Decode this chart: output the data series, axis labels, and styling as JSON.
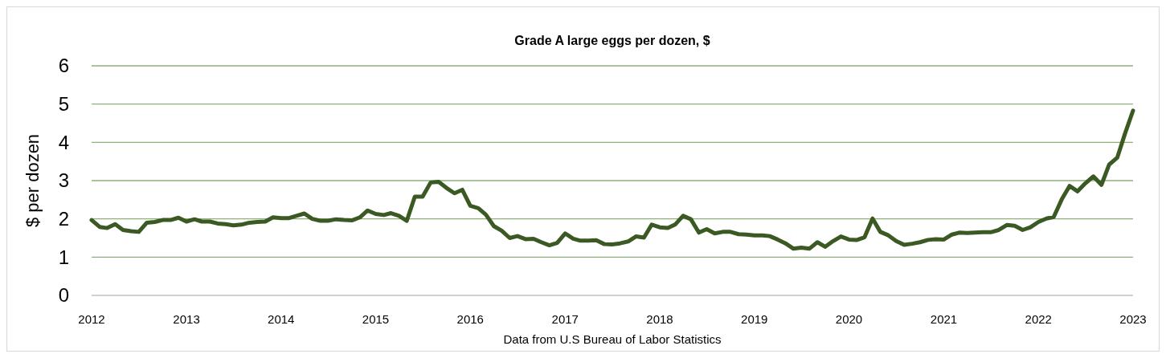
{
  "chart_data": {
    "type": "line",
    "title": "Grade A large eggs per dozen, $",
    "ylabel": "$ per dozen",
    "annotations": [
      "Data from U.S Bureau of Labor Statistics"
    ],
    "x": [
      "2012-01",
      "2012-02",
      "2012-03",
      "2012-04",
      "2012-05",
      "2012-06",
      "2012-07",
      "2012-08",
      "2012-09",
      "2012-10",
      "2012-11",
      "2012-12",
      "2013-01",
      "2013-02",
      "2013-03",
      "2013-04",
      "2013-05",
      "2013-06",
      "2013-07",
      "2013-08",
      "2013-09",
      "2013-10",
      "2013-11",
      "2013-12",
      "2014-01",
      "2014-02",
      "2014-03",
      "2014-04",
      "2014-05",
      "2014-06",
      "2014-07",
      "2014-08",
      "2014-09",
      "2014-10",
      "2014-11",
      "2014-12",
      "2015-01",
      "2015-02",
      "2015-03",
      "2015-04",
      "2015-05",
      "2015-06",
      "2015-07",
      "2015-08",
      "2015-09",
      "2015-10",
      "2015-11",
      "2015-12",
      "2016-01",
      "2016-02",
      "2016-03",
      "2016-04",
      "2016-05",
      "2016-06",
      "2016-07",
      "2016-08",
      "2016-09",
      "2016-10",
      "2016-11",
      "2016-12",
      "2017-01",
      "2017-02",
      "2017-03",
      "2017-04",
      "2017-05",
      "2017-06",
      "2017-07",
      "2017-08",
      "2017-09",
      "2017-10",
      "2017-11",
      "2017-12",
      "2018-01",
      "2018-02",
      "2018-03",
      "2018-04",
      "2018-05",
      "2018-06",
      "2018-07",
      "2018-08",
      "2018-09",
      "2018-10",
      "2018-11",
      "2018-12",
      "2019-01",
      "2019-02",
      "2019-03",
      "2019-04",
      "2019-05",
      "2019-06",
      "2019-07",
      "2019-08",
      "2019-09",
      "2019-10",
      "2019-11",
      "2019-12",
      "2020-01",
      "2020-02",
      "2020-03",
      "2020-04",
      "2020-05",
      "2020-06",
      "2020-07",
      "2020-08",
      "2020-09",
      "2020-10",
      "2020-11",
      "2020-12",
      "2021-01",
      "2021-02",
      "2021-03",
      "2021-04",
      "2021-05",
      "2021-06",
      "2021-07",
      "2021-08",
      "2021-09",
      "2021-10",
      "2021-11",
      "2021-12",
      "2022-01",
      "2022-02",
      "2022-03",
      "2022-04",
      "2022-05",
      "2022-06",
      "2022-07",
      "2022-08",
      "2022-09",
      "2022-10",
      "2022-11",
      "2022-12",
      "2023-01"
    ],
    "series": [
      {
        "color": "#3b5a23",
        "values": [
          1.97,
          1.79,
          1.76,
          1.86,
          1.71,
          1.68,
          1.66,
          1.9,
          1.92,
          1.97,
          1.97,
          2.03,
          1.93,
          1.99,
          1.93,
          1.93,
          1.88,
          1.86,
          1.83,
          1.85,
          1.9,
          1.92,
          1.93,
          2.04,
          2.02,
          2.02,
          2.08,
          2.14,
          2.0,
          1.95,
          1.95,
          1.99,
          1.97,
          1.96,
          2.04,
          2.22,
          2.13,
          2.1,
          2.15,
          2.08,
          1.95,
          2.58,
          2.58,
          2.95,
          2.97,
          2.81,
          2.67,
          2.76,
          2.34,
          2.28,
          2.11,
          1.81,
          1.69,
          1.5,
          1.55,
          1.47,
          1.48,
          1.39,
          1.31,
          1.37,
          1.62,
          1.48,
          1.43,
          1.43,
          1.44,
          1.34,
          1.33,
          1.36,
          1.41,
          1.54,
          1.51,
          1.85,
          1.78,
          1.76,
          1.85,
          2.08,
          1.99,
          1.64,
          1.73,
          1.62,
          1.66,
          1.66,
          1.6,
          1.59,
          1.57,
          1.57,
          1.55,
          1.46,
          1.36,
          1.22,
          1.25,
          1.22,
          1.39,
          1.27,
          1.42,
          1.54,
          1.46,
          1.45,
          1.52,
          2.01,
          1.66,
          1.57,
          1.42,
          1.32,
          1.35,
          1.39,
          1.45,
          1.47,
          1.46,
          1.59,
          1.64,
          1.63,
          1.64,
          1.65,
          1.65,
          1.71,
          1.84,
          1.82,
          1.71,
          1.78,
          1.92,
          2.01,
          2.05,
          2.51,
          2.86,
          2.72,
          2.93,
          3.11,
          2.89,
          3.42,
          3.6,
          4.23,
          4.83
        ]
      }
    ],
    "xlim": [
      "2012-01",
      "2023-01"
    ],
    "xticks": [
      "2012",
      "2013",
      "2014",
      "2015",
      "2016",
      "2017",
      "2018",
      "2019",
      "2020",
      "2021",
      "2022",
      "2023"
    ],
    "ylim": [
      0,
      6
    ],
    "yticks": [
      0,
      1,
      2,
      3,
      4,
      5,
      6
    ],
    "grid": "y",
    "marker": "none",
    "line_style": "solid"
  }
}
